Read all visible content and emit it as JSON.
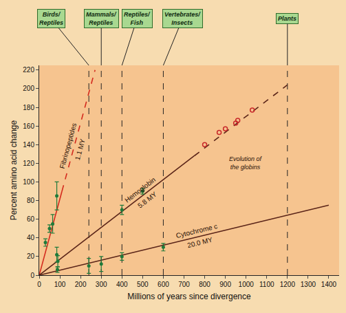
{
  "chart_data": {
    "type": "scatter",
    "xlabel": "Millions of years since divergence",
    "ylabel": "Percent amino acid change",
    "xlim": [
      0,
      1450
    ],
    "xticks": [
      0,
      100,
      200,
      300,
      400,
      500,
      600,
      700,
      800,
      900,
      1000,
      1100,
      1200,
      1300,
      1400
    ],
    "ylim": [
      0,
      225
    ],
    "yticks": [
      0,
      20,
      40,
      60,
      80,
      100,
      120,
      140,
      160,
      180,
      200,
      220
    ],
    "grid": false,
    "lines": [
      {
        "name": "Fibrinopeptides",
        "rate": "1.1 MY",
        "color": "#d42a1e",
        "line_style": "solid",
        "x": [
          0,
          110
        ],
        "values": [
          0,
          90
        ],
        "extension": {
          "x": [
            110,
            270
          ],
          "values": [
            90,
            220
          ],
          "line_style": "dashed"
        }
      },
      {
        "name": "Hemoglobin",
        "rate": "5.8 MY",
        "color": "#5a2418",
        "line_style": "solid",
        "x": [
          0,
          750
        ],
        "values": [
          0,
          128
        ],
        "extension": {
          "x": [
            750,
            1200
          ],
          "values": [
            128,
            204
          ],
          "line_style": "dashed"
        }
      },
      {
        "name": "Cytochrome c",
        "rate": "20.0 MY",
        "color": "#5a2418",
        "line_style": "solid",
        "x": [
          0,
          1400
        ],
        "values": [
          0,
          75
        ]
      }
    ],
    "measurements": {
      "color": "#1f7a3a",
      "marker": "circle",
      "x": [
        30,
        50,
        65,
        85,
        85,
        90,
        88,
        240,
        300,
        400,
        400,
        500,
        600
      ],
      "values": [
        35,
        50,
        55,
        85,
        22,
        15,
        6,
        10,
        12,
        70,
        20,
        90,
        30
      ],
      "error": [
        4,
        4,
        10,
        15,
        8,
        6,
        3,
        8,
        8,
        5,
        4,
        3,
        4
      ]
    },
    "globins": {
      "name": "Evolution of the globins",
      "color": "#c8282a",
      "marker": "circle-open",
      "x": [
        800,
        870,
        900,
        950,
        960,
        1030
      ],
      "values": [
        140,
        153,
        157,
        163,
        166,
        177
      ]
    },
    "divergences": [
      {
        "label": "Birds/Reptiles",
        "x": 240
      },
      {
        "label": "Mammals/Reptiles",
        "x": 300
      },
      {
        "label": "Reptiles/Fish",
        "x": 400
      },
      {
        "label": "Vertebrates/Insects",
        "x": 600
      },
      {
        "label": "Plants",
        "x": 1200
      }
    ]
  }
}
